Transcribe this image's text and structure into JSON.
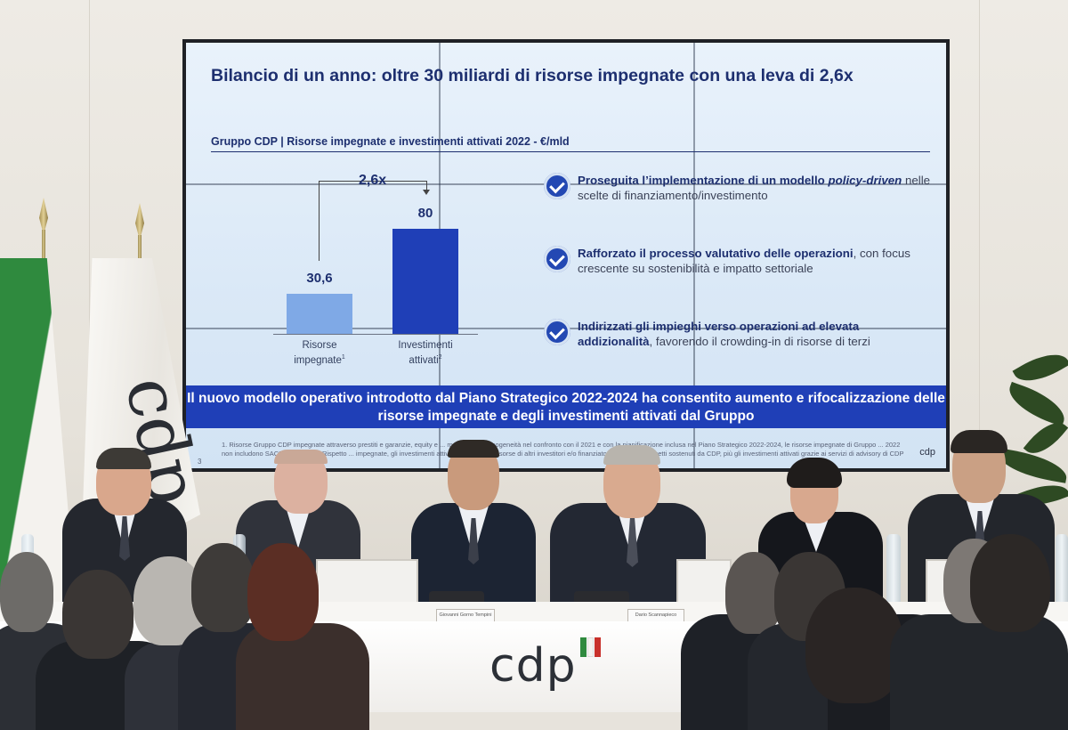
{
  "slide": {
    "title": "Bilancio di un anno: oltre 30 miliardi di risorse impegnate con una leva di 2,6x",
    "subtitle": "Gruppo CDP | Risorse impegnate e investimenti attivati 2022 - €/mld",
    "leverage": "2,6x",
    "bullets": [
      {
        "parts": [
          {
            "t": "Proseguita l’implementazione di un modello ",
            "s": "b"
          },
          {
            "t": "policy-driven",
            "s": "bi"
          },
          {
            "t": " nelle scelte di finanziamento/investimento",
            "s": ""
          }
        ]
      },
      {
        "parts": [
          {
            "t": "Rafforzato il processo valutativo delle operazioni",
            "s": "b"
          },
          {
            "t": ", con focus crescente su sostenibilità e impatto settoriale",
            "s": ""
          }
        ]
      },
      {
        "parts": [
          {
            "t": "Indirizzati gli impieghi verso operazioni ad elevata addizionalità",
            "s": "b"
          },
          {
            "t": ", favorendo il crowding-in di risorse di terzi",
            "s": ""
          }
        ]
      }
    ],
    "banner": "Il nuovo modello operativo introdotto dal Piano Strategico 2022-2024 ha consentito aumento e rifocalizzazione delle risorse impegnate e degli investimenti attivati dal Gruppo",
    "footnote": "1. Risorse Gruppo CDP impegnate attraverso prestiti e garanzie, equity e ... mandati, per omogeneità nel confronto con il 2021 e con la pianificazione inclusa nel Piano Strategico 2022-2024, le risorse impegnate di Gruppo ... 2022 non includono SACE e Simest; 2. Rispetto ... impegnate, gli investimenti attivati includono ... risorse di altri investitori e/o finanziatori attivate su progetti sostenuti da CDP, più gli investimenti attivati grazie ai servizi di advisory di CDP",
    "page_number": "3",
    "logo": "cdp"
  },
  "chart_data": {
    "type": "bar",
    "title": "",
    "categories": [
      "Risorse impegnate",
      "Investimenti attivati"
    ],
    "category_footnotes": [
      "1",
      "2"
    ],
    "values": [
      30.6,
      80
    ],
    "value_labels": [
      "30,6",
      "80"
    ],
    "colors": [
      "#7fa9e6",
      "#1f3fb7"
    ],
    "ylim": [
      0,
      80
    ],
    "annotation": "2,6x"
  },
  "nameplates": [
    "Giovanni Gorno Tempini",
    "Dario Scannapieco"
  ],
  "table_logo": "cdp",
  "colors": {
    "slide_title": "#1d2f6f",
    "banner": "#1f3fb7",
    "bar_light": "#7fa9e6",
    "bar_dark": "#1f3fb7",
    "flag_green": "#2f8a3e",
    "flag_red": "#c8312b"
  }
}
